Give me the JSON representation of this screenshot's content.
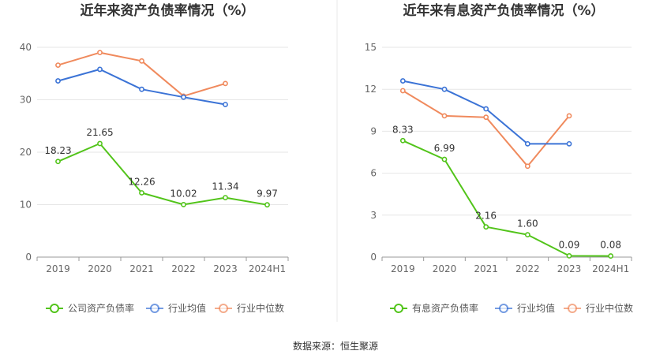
{
  "source": "数据来源：恒生聚源",
  "colors": {
    "green": "#52c41a",
    "blue": "#3b73d6",
    "orange": "#f08a5d"
  },
  "chart_data": [
    {
      "type": "line",
      "title": "近年来资产负债率情况（%）",
      "categories": [
        "2019",
        "2020",
        "2021",
        "2022",
        "2023",
        "2024H1"
      ],
      "ylim": [
        0,
        40
      ],
      "yticks": [
        0,
        10,
        20,
        30,
        40
      ],
      "grid": true,
      "legend_position": "bottom",
      "series": [
        {
          "name": "公司资产负债率",
          "color": "#52c41a",
          "values": [
            18.23,
            21.65,
            12.26,
            10.02,
            11.34,
            9.97
          ],
          "labels": [
            "18.23",
            "21.65",
            "12.26",
            "10.02",
            "11.34",
            "9.97"
          ]
        },
        {
          "name": "行业均值",
          "color": "#3b73d6",
          "values": [
            33.6,
            35.8,
            32.0,
            30.5,
            29.1,
            null
          ]
        },
        {
          "name": "行业中位数",
          "color": "#f08a5d",
          "values": [
            36.6,
            39.0,
            37.4,
            30.7,
            33.1,
            null
          ]
        }
      ]
    },
    {
      "type": "line",
      "title": "近年来有息资产负债率情况（%）",
      "categories": [
        "2019",
        "2020",
        "2021",
        "2022",
        "2023",
        "2024H1"
      ],
      "ylim": [
        0,
        15
      ],
      "yticks": [
        0,
        3,
        6,
        9,
        12,
        15
      ],
      "grid": true,
      "legend_position": "bottom",
      "series": [
        {
          "name": "有息资产负债率",
          "color": "#52c41a",
          "values": [
            8.33,
            6.99,
            2.16,
            1.6,
            0.09,
            0.08
          ],
          "labels": [
            "8.33",
            "6.99",
            "2.16",
            "1.60",
            "0.09",
            "0.08"
          ]
        },
        {
          "name": "行业均值",
          "color": "#3b73d6",
          "values": [
            12.6,
            12.0,
            10.6,
            8.1,
            8.1,
            null
          ]
        },
        {
          "name": "行业中位数",
          "color": "#f08a5d",
          "values": [
            11.9,
            10.1,
            10.0,
            6.5,
            10.1,
            null
          ]
        }
      ]
    }
  ]
}
